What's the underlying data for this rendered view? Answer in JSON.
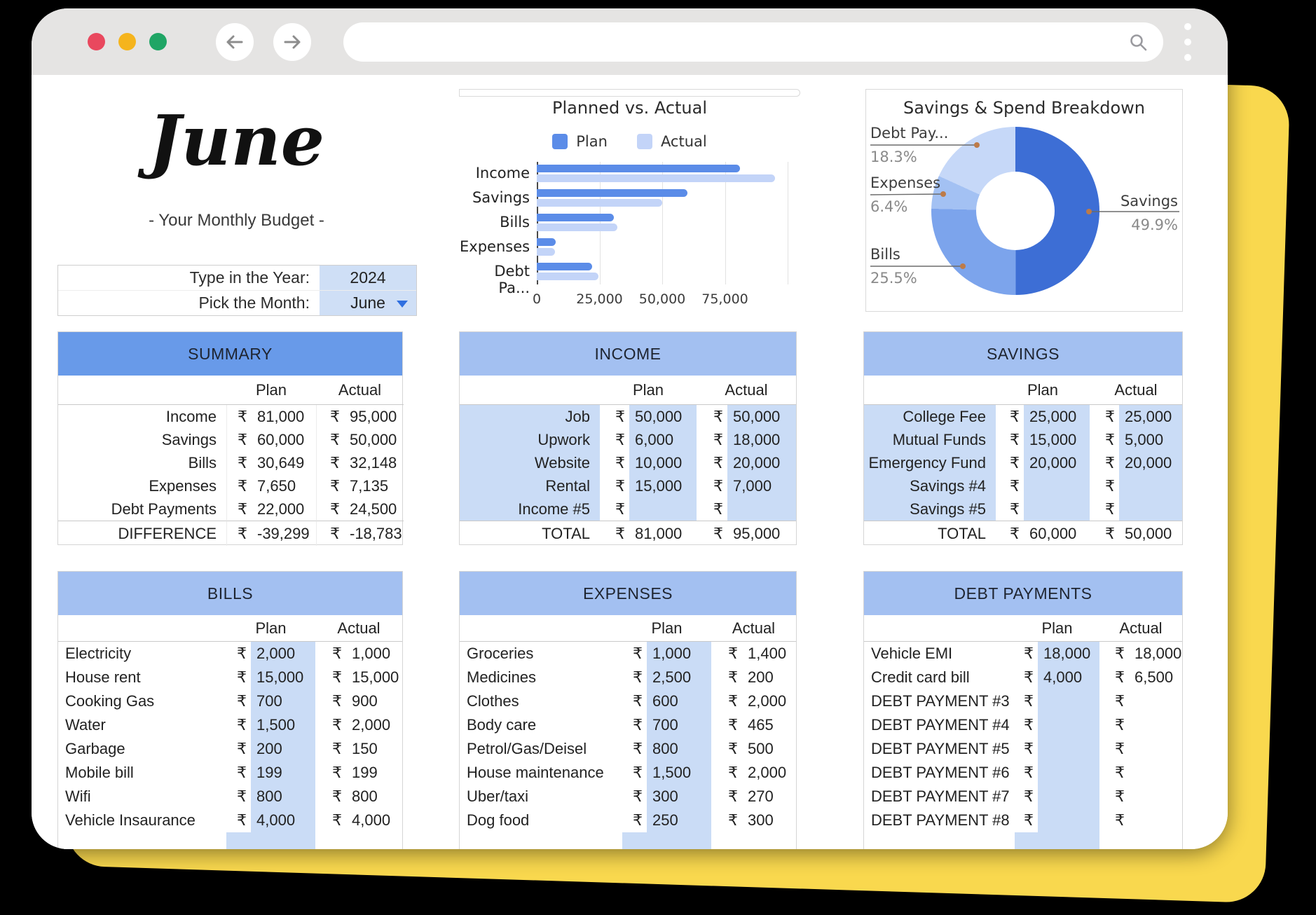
{
  "browser": {
    "url_value": "",
    "icons": {
      "back": "arrow-left",
      "forward": "arrow-right",
      "search": "magnifier",
      "menu": "vertical-dots",
      "dropdown": "caret-down"
    }
  },
  "page": {
    "month_title": "June",
    "subtitle": "- Your Monthly Budget -",
    "picker": {
      "year_label": "Type in the Year:",
      "year_value": "2024",
      "month_label": "Pick the Month:",
      "month_value": "June"
    }
  },
  "chart_data": [
    {
      "type": "bar",
      "orientation": "horizontal",
      "title": "Planned vs. Actual",
      "categories": [
        "Income",
        "Savings",
        "Bills",
        "Expenses",
        "Debt Pa..."
      ],
      "series": [
        {
          "name": "Plan",
          "color": "#5b8ce8",
          "values": [
            81000,
            60000,
            30649,
            7650,
            22000
          ]
        },
        {
          "name": "Actual",
          "color": "#c3d4f8",
          "values": [
            95000,
            50000,
            32148,
            7135,
            24500
          ]
        }
      ],
      "xlim": [
        0,
        100000
      ],
      "xticks": [
        0,
        25000,
        50000,
        75000
      ],
      "xtick_labels": [
        "0",
        "25,000",
        "50,000",
        "75,000"
      ],
      "grid": true,
      "legend_position": "top"
    },
    {
      "type": "pie",
      "donut": true,
      "title": "Savings & Spend Breakdown",
      "slices": [
        {
          "label": "Savings",
          "pct": 49.9,
          "pct_label": "49.9%",
          "color": "#3d6ed5"
        },
        {
          "label": "Bills",
          "pct": 25.5,
          "pct_label": "25.5%",
          "color": "#7ca4ec"
        },
        {
          "label": "Expenses",
          "pct": 6.4,
          "pct_label": "6.4%",
          "color": "#a3c1f3"
        },
        {
          "label": "Debt Pay...",
          "pct": 18.3,
          "pct_label": "18.3%",
          "color": "#c6d8f8"
        }
      ]
    }
  ],
  "tables": {
    "summary": {
      "style": "summary",
      "title": "SUMMARY",
      "header_color": "#689ae9",
      "currency": "₹",
      "columns": [
        "Plan",
        "Actual"
      ],
      "rows": [
        [
          "Income",
          "81,000",
          "95,000"
        ],
        [
          "Savings",
          "60,000",
          "50,000"
        ],
        [
          "Bills",
          "30,649",
          "32,148"
        ],
        [
          "Expenses",
          "7,650",
          "7,135"
        ],
        [
          "Debt Payments",
          "22,000",
          "24,500"
        ]
      ],
      "footer": [
        "DIFFERENCE",
        "-39,299",
        "-18,783"
      ]
    },
    "income": {
      "style": "banded",
      "title": "INCOME",
      "header_color": "#a3c0f1",
      "currency": "₹",
      "columns": [
        "Plan",
        "Actual"
      ],
      "rows": [
        [
          "Job",
          "50,000",
          "50,000"
        ],
        [
          "Upwork",
          "6,000",
          "18,000"
        ],
        [
          "Website",
          "10,000",
          "20,000"
        ],
        [
          "Rental",
          "15,000",
          "7,000"
        ],
        [
          "Income #5",
          "",
          ""
        ]
      ],
      "footer": [
        "TOTAL",
        "81,000",
        "95,000"
      ]
    },
    "savings": {
      "style": "banded",
      "title": "SAVINGS",
      "header_color": "#a3c0f1",
      "currency": "₹",
      "columns": [
        "Plan",
        "Actual"
      ],
      "rows": [
        [
          "College Fee",
          "25,000",
          "25,000"
        ],
        [
          "Mutual Funds",
          "15,000",
          "5,000"
        ],
        [
          "Emergency Fund",
          "20,000",
          "20,000"
        ],
        [
          "Savings #4",
          "",
          ""
        ],
        [
          "Savings #5",
          "",
          ""
        ]
      ],
      "footer": [
        "TOTAL",
        "60,000",
        "50,000"
      ]
    },
    "bills": {
      "style": "planband",
      "title": "BILLS",
      "header_color": "#a3c0f1",
      "currency": "₹",
      "clipped": true,
      "columns": [
        "Plan",
        "Actual"
      ],
      "rows": [
        [
          "Electricity",
          "2,000",
          "1,000"
        ],
        [
          "House rent",
          "15,000",
          "15,000"
        ],
        [
          "Cooking Gas",
          "700",
          "900"
        ],
        [
          "Water",
          "1,500",
          "2,000"
        ],
        [
          "Garbage",
          "200",
          "150"
        ],
        [
          "Mobile bill",
          "199",
          "199"
        ],
        [
          "Wifi",
          "800",
          "800"
        ],
        [
          "Vehicle Insaurance",
          "4,000",
          "4,000"
        ]
      ]
    },
    "expenses": {
      "style": "planband",
      "title": "EXPENSES",
      "header_color": "#a3c0f1",
      "currency": "₹",
      "clipped": true,
      "columns": [
        "Plan",
        "Actual"
      ],
      "rows": [
        [
          "Groceries",
          "1,000",
          "1,400"
        ],
        [
          "Medicines",
          "2,500",
          "200"
        ],
        [
          "Clothes",
          "600",
          "2,000"
        ],
        [
          "Body care",
          "700",
          "465"
        ],
        [
          "Petrol/Gas/Deisel",
          "800",
          "500"
        ],
        [
          "House maintenance",
          "1,500",
          "2,000"
        ],
        [
          "Uber/taxi",
          "300",
          "270"
        ],
        [
          "Dog food",
          "250",
          "300"
        ]
      ]
    },
    "debt": {
      "style": "planband",
      "title": "DEBT PAYMENTS",
      "header_color": "#a3c0f1",
      "currency": "₹",
      "clipped": true,
      "columns": [
        "Plan",
        "Actual"
      ],
      "rows": [
        [
          "Vehicle EMI",
          "18,000",
          "18,000"
        ],
        [
          "Credit card bill",
          "4,000",
          "6,500"
        ],
        [
          "DEBT PAYMENT #3",
          "",
          ""
        ],
        [
          "DEBT PAYMENT #4",
          "",
          ""
        ],
        [
          "DEBT PAYMENT #5",
          "",
          ""
        ],
        [
          "DEBT PAYMENT #6",
          "",
          ""
        ],
        [
          "DEBT PAYMENT #7",
          "",
          ""
        ],
        [
          "DEBT PAYMENT #8",
          "",
          ""
        ]
      ]
    }
  }
}
